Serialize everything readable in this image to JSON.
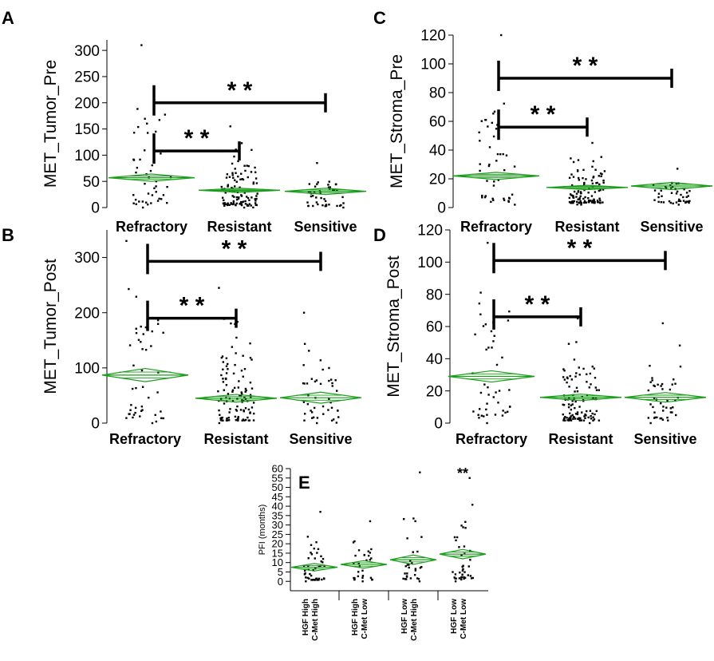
{
  "chart_data": [
    {
      "panel": "A",
      "type": "scatter",
      "ylabel": "MET_Tumor_Pre",
      "categories": [
        "Refractory",
        "Resistant",
        "Sensitive"
      ],
      "ylim": [
        0,
        320
      ],
      "yticks": [
        0,
        50,
        100,
        150,
        200,
        250,
        300
      ],
      "means": [
        57,
        33,
        31
      ],
      "diamond_half": [
        7,
        4,
        6
      ],
      "n_points": [
        45,
        110,
        45
      ],
      "point_range": [
        [
          0,
          310
        ],
        [
          0,
          155
        ],
        [
          0,
          85
        ]
      ],
      "significance": [
        {
          "from": "Refractory",
          "to": "Resistant",
          "y": 108,
          "label": "* *"
        },
        {
          "from": "Refractory",
          "to": "Sensitive",
          "y": 200,
          "label": "* *"
        }
      ]
    },
    {
      "panel": "C",
      "type": "scatter",
      "ylabel": "MET_Stroma_Pre",
      "categories": [
        "Refractory",
        "Resistant",
        "Sensitive"
      ],
      "ylim": [
        0,
        120
      ],
      "yticks": [
        0,
        20,
        40,
        60,
        80,
        100,
        120
      ],
      "means": [
        22,
        14,
        15
      ],
      "diamond_half": [
        2.5,
        1.5,
        2.5
      ],
      "n_points": [
        45,
        110,
        45
      ],
      "point_range": [
        [
          2,
          120
        ],
        [
          2,
          45
        ],
        [
          2,
          27
        ]
      ],
      "significance": [
        {
          "from": "Refractory",
          "to": "Resistant",
          "y": 56,
          "label": "* *"
        },
        {
          "from": "Refractory",
          "to": "Sensitive",
          "y": 90,
          "label": "* *"
        }
      ]
    },
    {
      "panel": "B",
      "type": "scatter",
      "ylabel": "MET_Tumor_Post",
      "categories": [
        "Refractory",
        "Resistant",
        "Sensitive"
      ],
      "ylim": [
        0,
        350
      ],
      "yticks": [
        0,
        100,
        200,
        300
      ],
      "means": [
        87,
        45,
        46
      ],
      "diamond_half": [
        12,
        7,
        10
      ],
      "n_points": [
        45,
        110,
        45
      ],
      "point_range": [
        [
          0,
          330
        ],
        [
          0,
          245
        ],
        [
          0,
          200
        ]
      ],
      "significance": [
        {
          "from": "Refractory",
          "to": "Resistant",
          "y": 190,
          "label": "* *"
        },
        {
          "from": "Refractory",
          "to": "Sensitive",
          "y": 293,
          "label": "* *"
        }
      ]
    },
    {
      "panel": "D",
      "type": "scatter",
      "ylabel": "MET_Stroma_Post",
      "categories": [
        "Refractory",
        "Resistant",
        "Sensitive"
      ],
      "ylim": [
        0,
        120
      ],
      "yticks": [
        0,
        20,
        40,
        60,
        80,
        100,
        120
      ],
      "means": [
        29,
        16,
        16
      ],
      "diamond_half": [
        3.5,
        2,
        3
      ],
      "n_points": [
        45,
        110,
        45
      ],
      "point_range": [
        [
          0,
          112
        ],
        [
          0,
          65
        ],
        [
          0,
          62
        ]
      ],
      "significance": [
        {
          "from": "Refractory",
          "to": "Resistant",
          "y": 66,
          "label": "* *"
        },
        {
          "from": "Refractory",
          "to": "Sensitive",
          "y": 101,
          "label": "* *"
        }
      ]
    },
    {
      "panel": "E",
      "type": "scatter",
      "ylabel": "PFI (months)",
      "categories": [
        "HGF High C-Met High",
        "HGF High C-Met Low",
        "HGF Low C-Met High",
        "HGF Low C-Met Low"
      ],
      "category_lines": [
        [
          "HGF High",
          "C-Met High"
        ],
        [
          "HGF High",
          "C-Met Low"
        ],
        [
          "HGF Low",
          "C-Met High"
        ],
        [
          "HGF Low",
          "C-Met Low"
        ]
      ],
      "ylim": [
        -5,
        60
      ],
      "yticks": [
        0,
        5,
        10,
        15,
        20,
        25,
        30,
        35,
        40,
        45,
        50,
        55,
        60
      ],
      "means": [
        7.5,
        9,
        11.5,
        14.5
      ],
      "diamond_half": [
        2,
        2,
        2.5,
        2.5
      ],
      "n_points": [
        45,
        30,
        30,
        40
      ],
      "point_range": [
        [
          0,
          37
        ],
        [
          0,
          32
        ],
        [
          0,
          58
        ],
        [
          0,
          55
        ]
      ],
      "annotations": [
        {
          "category": "HGF Low C-Met Low",
          "text": "**"
        }
      ]
    }
  ],
  "colors": {
    "diamond": "#1a9e1a",
    "points": "#000000",
    "axis": "#000000"
  }
}
